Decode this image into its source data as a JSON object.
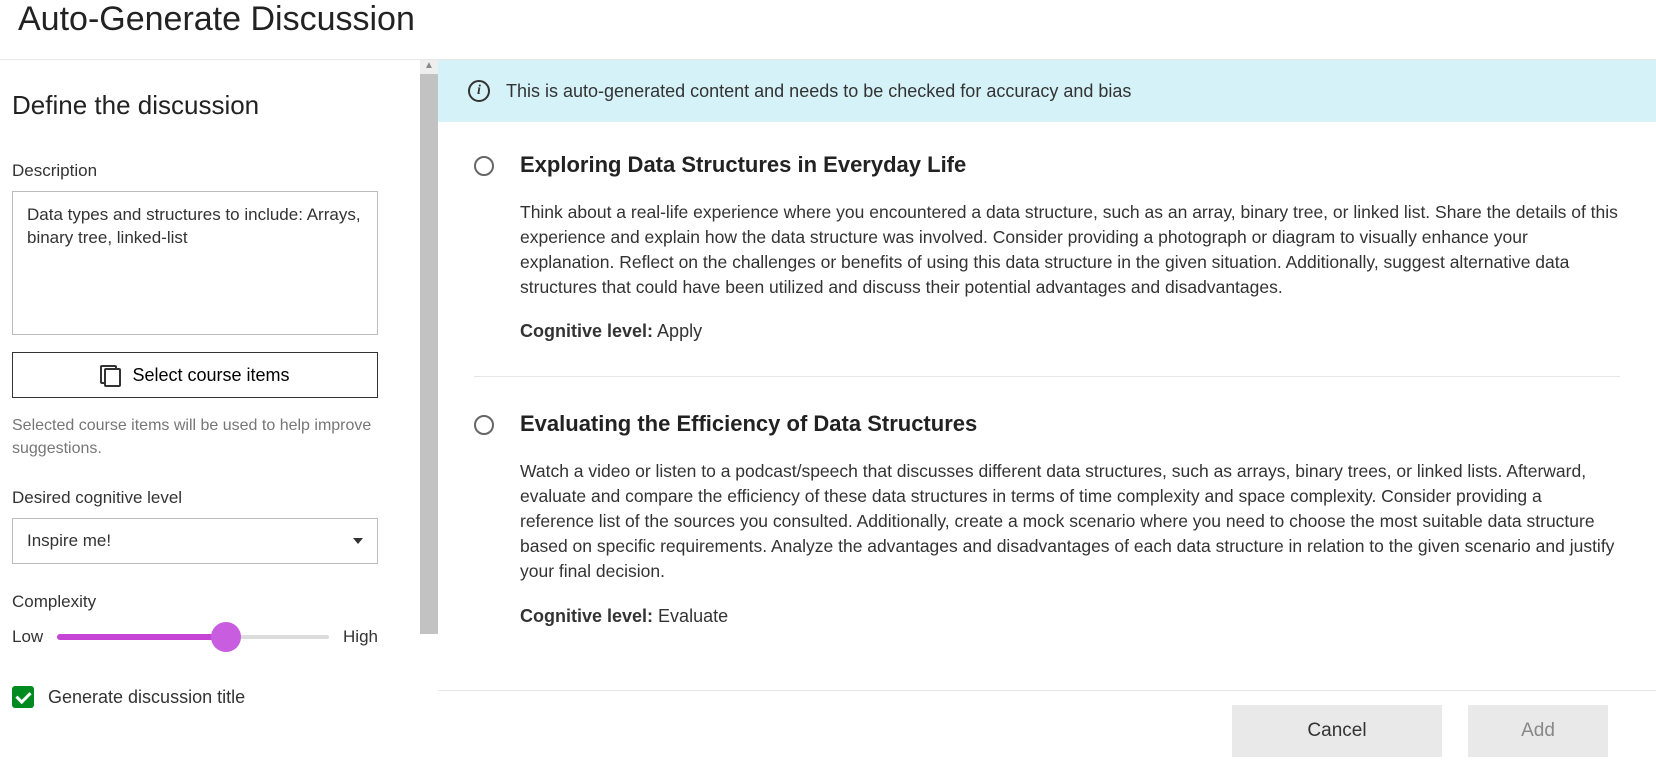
{
  "page_title": "Auto-Generate Discussion",
  "sidebar": {
    "heading": "Define the discussion",
    "description_label": "Description",
    "description_value": "Data types and structures to include: Arrays, binary tree, linked-list",
    "select_items_label": "Select course items",
    "helper_text": "Selected course items will be used to help improve suggestions.",
    "cognitive_label": "Desired cognitive level",
    "cognitive_selected": "Inspire me!",
    "complexity_label": "Complexity",
    "complexity_low": "Low",
    "complexity_high": "High",
    "generate_title_label": "Generate discussion title"
  },
  "banner": {
    "text": "This is auto-generated content and needs to be checked for accuracy and bias"
  },
  "results": {
    "cog_level_label": "Cognitive level:",
    "items": [
      {
        "title": "Exploring Data Structures in Everyday Life",
        "body": "Think about a real-life experience where you encountered a data structure, such as an array, binary tree, or linked list. Share the details of this experience and explain how the data structure was involved. Consider providing a photograph or diagram to visually enhance your explanation. Reflect on the challenges or benefits of using this data structure in the given situation. Additionally, suggest alternative data structures that could have been utilized and discuss their potential advantages and disadvantages.",
        "cognitive_level": "Apply"
      },
      {
        "title": "Evaluating the Efficiency of Data Structures",
        "body": "Watch a video or listen to a podcast/speech that discusses different data structures, such as arrays, binary trees, or linked lists. Afterward, evaluate and compare the efficiency of these data structures in terms of time complexity and space complexity. Consider providing a reference list of the sources you consulted. Additionally, create a mock scenario where you need to choose the most suitable data structure based on specific requirements. Analyze the advantages and disadvantages of each data structure in relation to the given scenario and justify your final decision.",
        "cognitive_level": "Evaluate"
      }
    ]
  },
  "footer": {
    "cancel": "Cancel",
    "add": "Add"
  },
  "colors": {
    "accent_purple": "#c544d5",
    "checkbox_green": "#008a20",
    "banner_bg": "#d5f2f8"
  }
}
